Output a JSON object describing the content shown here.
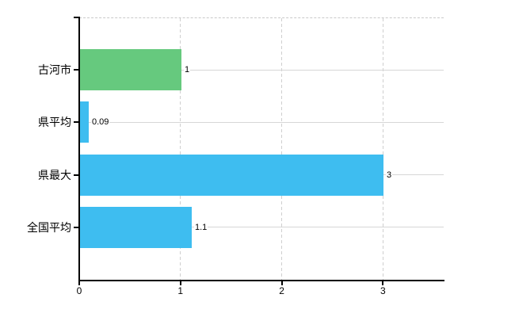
{
  "chart_data": {
    "type": "bar",
    "orientation": "horizontal",
    "title": "",
    "xlabel": "",
    "ylabel": "",
    "categories": [
      "古河市",
      "県平均",
      "県最大",
      "全国平均"
    ],
    "values": [
      1,
      0.09,
      3,
      1.1
    ],
    "value_labels": [
      "1",
      "0.09",
      "3",
      "1.1"
    ],
    "bar_colors": [
      "#66c97e",
      "#3ebdf0",
      "#3ebdf0",
      "#3ebdf0"
    ],
    "xlim": [
      0,
      3.6
    ],
    "x_ticks": [
      0,
      1,
      2,
      3
    ],
    "x_tick_labels": [
      "0",
      "1",
      "2",
      "3"
    ],
    "grid": {
      "vertical": "dashed",
      "horizontal": "solid category lines"
    },
    "legend": "none",
    "colors": {
      "green_bar": "#66c97e",
      "blue_bar": "#3ebdf0",
      "axis": "#000000",
      "gridline_solid": "#d6d6d6",
      "gridline_dashed": "#cfcfcf",
      "background": "#ffffff",
      "text": "#000000"
    }
  }
}
